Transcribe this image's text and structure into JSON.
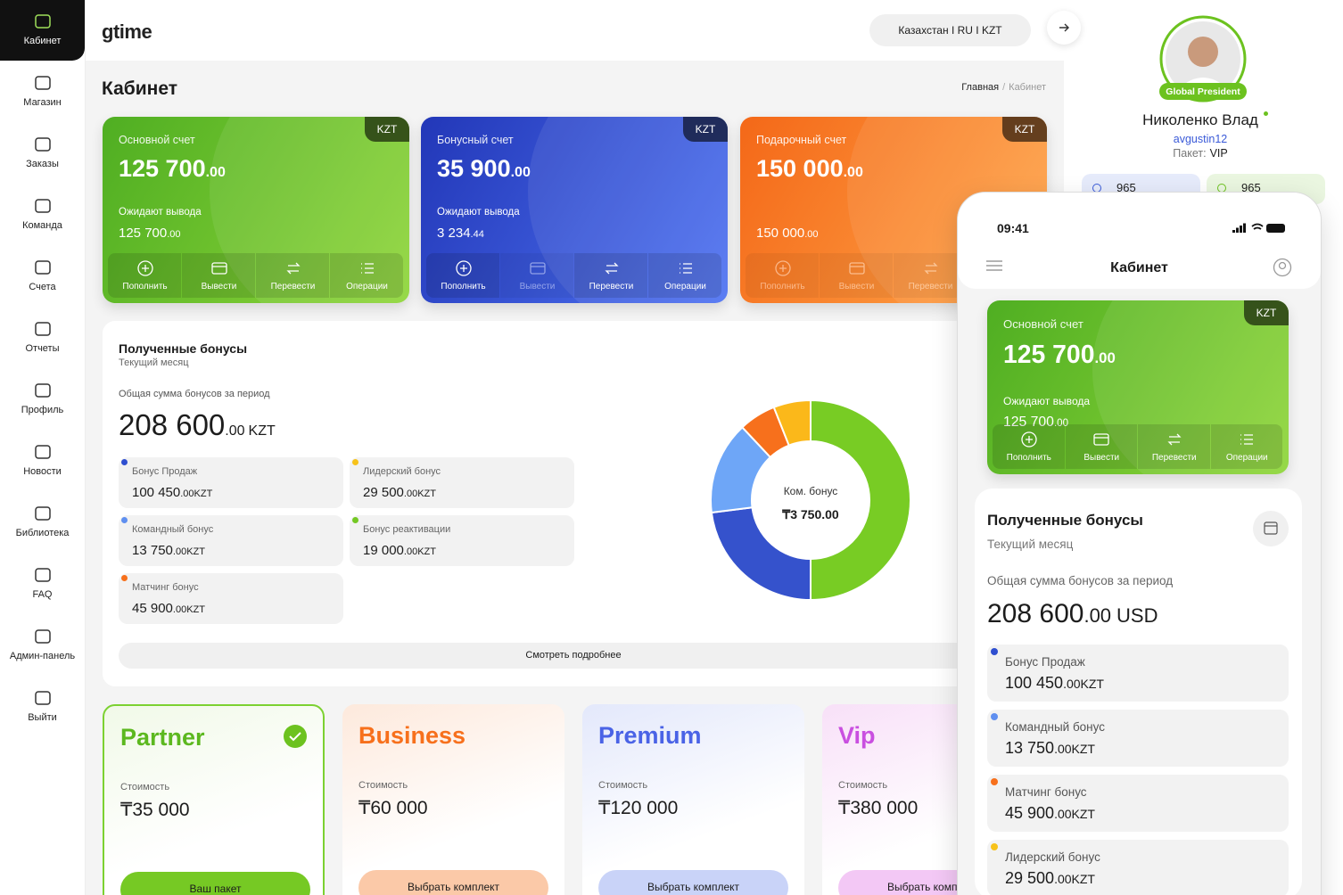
{
  "sidebar": {
    "items": [
      "Кабинет",
      "Магазин",
      "Заказы",
      "Команда",
      "Счета",
      "Отчеты",
      "Профиль",
      "Новости",
      "Библиотека",
      "FAQ",
      "Админ-панель",
      "Выйти"
    ]
  },
  "header": {
    "logo": "gtime",
    "locale": "Казахстан I RU I KZT"
  },
  "page": {
    "title": "Кабинет",
    "breadcrumbs": {
      "home": "Главная",
      "separator": "/",
      "current": "Кабинет"
    }
  },
  "profile": {
    "badge": "Global President",
    "name": "Николенко Влад",
    "login": "avgustin12",
    "package_label": "Пакет:",
    "package": "VIP",
    "stats": [
      "965",
      "965"
    ]
  },
  "accounts": [
    {
      "currency": "KZT",
      "title": "Основной счет",
      "amount": "125 700",
      "decimals": ".00",
      "pending_label": "Ожидают вывода",
      "pending": "125 700",
      "pending_decimals": ".00",
      "actions": [
        "Пополнить",
        "Вывести",
        "Перевести",
        "Операции"
      ]
    },
    {
      "currency": "KZT",
      "title": "Бонусный счет",
      "amount": "35 900",
      "decimals": ".00",
      "pending_label": "Ожидают вывода",
      "pending": "3 234",
      "pending_decimals": ".44",
      "actions": [
        "Пополнить",
        "Вывести",
        "Перевести",
        "Операции"
      ]
    },
    {
      "currency": "KZT",
      "title": "Подарочный счет",
      "amount": "150 000",
      "decimals": ".00",
      "pending": "150 000",
      "pending_decimals": ".00",
      "actions": [
        "Пополнить",
        "Вывести",
        "Перевести"
      ]
    }
  ],
  "bonuses": {
    "title": "Полученные бонусы",
    "subtitle": "Текущий месяц",
    "total_label": "Общая сумма бонусов за период",
    "total": "208 600",
    "total_decimals": ".00",
    "total_currency": "KZT",
    "items": [
      {
        "name": "Бонус Продаж",
        "amount": "100 450",
        "decimals": ".00",
        "currency": "KZT",
        "color": "#2f4fd0"
      },
      {
        "name": "Лидерский бонус",
        "amount": "29 500",
        "decimals": ".00",
        "currency": "KZT",
        "color": "#f7c21a"
      },
      {
        "name": "Командный бонус",
        "amount": "13 750",
        "decimals": ".00",
        "currency": "KZT",
        "color": "#5f8ff0"
      },
      {
        "name": "Бонус реактивации",
        "amount": "19 000",
        "decimals": ".00",
        "currency": "KZT",
        "color": "#74c824"
      },
      {
        "name": "Матчинг бонус",
        "amount": "45 900",
        "decimals": ".00",
        "currency": "KZT",
        "color": "#f7701c"
      }
    ],
    "donut": {
      "center_label": "Ком. бонус",
      "center_value": "₸3 750.00",
      "segments": [
        {
          "value": 50,
          "color": "#78cc24"
        },
        {
          "value": 23,
          "color": "#3552cc"
        },
        {
          "value": 15,
          "color": "#6ea6f7"
        },
        {
          "value": 6,
          "color": "#f7701c"
        },
        {
          "value": 6,
          "color": "#fbb81a"
        }
      ]
    },
    "more": "Смотреть подробнее"
  },
  "packages": [
    {
      "name": "Partner",
      "cost_label": "Стоимость",
      "price": "₸35 000",
      "button": "Ваш пакет"
    },
    {
      "name": "Business",
      "cost_label": "Стоимость",
      "price": "₸60 000",
      "button": "Выбрать комплект"
    },
    {
      "name": "Premium",
      "cost_label": "Стоимость",
      "price": "₸120 000",
      "button": "Выбрать комплект"
    },
    {
      "name": "Vip",
      "cost_label": "Стоимость",
      "price": "₸380 000",
      "button": "Выбрать комплект"
    }
  ],
  "mobile": {
    "time": "09:41",
    "title": "Кабинет",
    "account": {
      "currency": "KZT",
      "title": "Основной счет",
      "amount": "125 700",
      "decimals": ".00",
      "pending_label": "Ожидают вывода",
      "pending": "125 700",
      "pending_decimals": ".00",
      "actions": [
        "Пополнить",
        "Вывести",
        "Перевести",
        "Операции"
      ]
    },
    "bonuses": {
      "title": "Полученные бонусы",
      "subtitle": "Текущий месяц",
      "total_label": "Общая сумма бонусов за период",
      "total": "208 600",
      "total_decimals": ".00",
      "total_currency": "USD",
      "items": [
        {
          "name": "Бонус Продаж",
          "amount": "100 450",
          "decimals": ".00",
          "currency": "KZT",
          "color": "#2f4fd0"
        },
        {
          "name": "Командный бонус",
          "amount": "13 750",
          "decimals": ".00",
          "currency": "KZT",
          "color": "#5f8ff0"
        },
        {
          "name": "Матчинг бонус",
          "amount": "45 900",
          "decimals": ".00",
          "currency": "KZT",
          "color": "#f7701c"
        },
        {
          "name": "Лидерский бонус",
          "amount": "29 500",
          "decimals": ".00",
          "currency": "KZT",
          "color": "#f7c21a"
        }
      ]
    }
  }
}
